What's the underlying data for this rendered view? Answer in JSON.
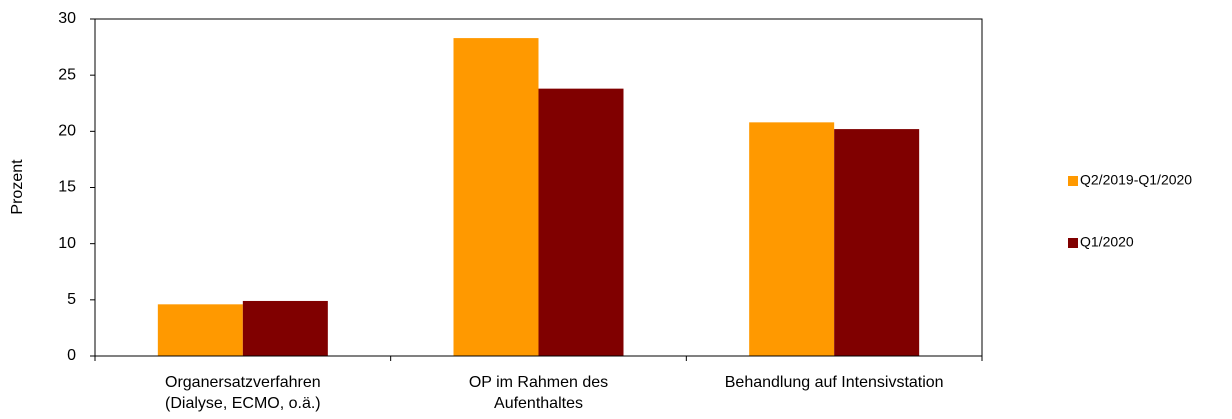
{
  "chart_data": {
    "type": "bar",
    "y_label": "Prozent",
    "categories": [
      [
        "Organersatzverfahren",
        "(Dialyse, ECMO, o.ä.)"
      ],
      [
        "OP im Rahmen des",
        "Aufenthaltes"
      ],
      [
        "Behandlung auf Intensivstation"
      ]
    ],
    "series": [
      {
        "name": "Q2/2019-Q1/2020",
        "color": "#ff9900",
        "values": [
          4.6,
          28.3,
          20.8
        ]
      },
      {
        "name": "Q1/2020",
        "color": "#800000",
        "values": [
          4.9,
          23.8,
          20.2
        ]
      }
    ],
    "ylim": [
      0,
      30
    ],
    "yticks": [
      0,
      5,
      10,
      15,
      20,
      25,
      30
    ],
    "legend": "right"
  }
}
